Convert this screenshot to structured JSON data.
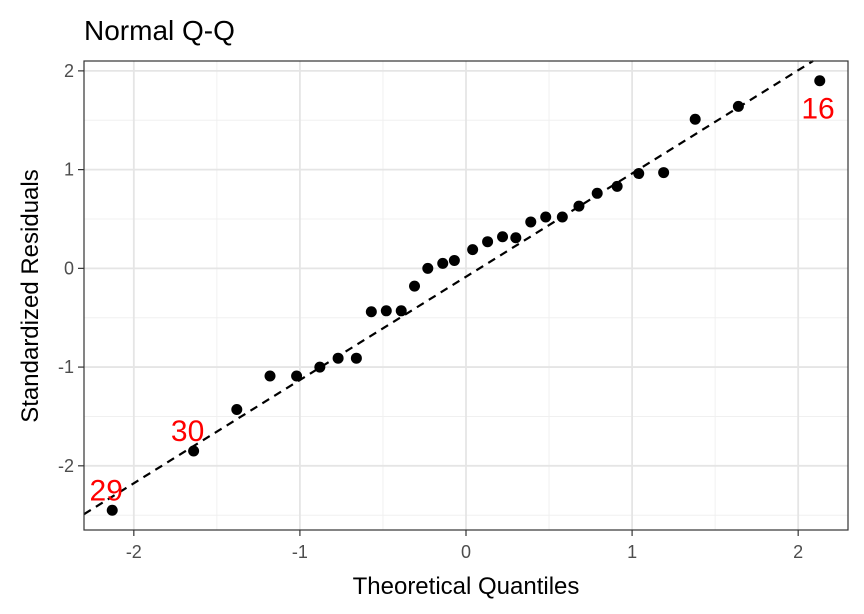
{
  "chart_data": {
    "type": "scatter",
    "title": "Normal Q-Q",
    "xlabel": "Theoretical Quantiles",
    "ylabel": "Standardized Residuals",
    "xlim": [
      -2.3,
      2.3
    ],
    "ylim": [
      -2.65,
      2.1
    ],
    "x_ticks": [
      -2,
      -1,
      0,
      1,
      2
    ],
    "x_tick_labels": [
      "-2",
      "-1",
      "0",
      "1",
      "2"
    ],
    "y_ticks": [
      -2,
      -1,
      0,
      1,
      2
    ],
    "y_tick_labels": [
      "-2",
      "-1",
      "0",
      "1",
      "2"
    ],
    "grid": true,
    "reference_line": {
      "style": "dashed",
      "color": "#000000",
      "points": [
        [
          -2.3,
          -2.49
        ],
        [
          2.3,
          2.32
        ]
      ]
    },
    "point_color": "#000000",
    "label_color": "#ff0000",
    "points": [
      [
        -2.13,
        -2.45
      ],
      [
        -1.64,
        -1.85
      ],
      [
        -1.38,
        -1.43
      ],
      [
        -1.18,
        -1.09
      ],
      [
        -1.02,
        -1.09
      ],
      [
        -0.88,
        -1.0
      ],
      [
        -0.77,
        -0.91
      ],
      [
        -0.66,
        -0.91
      ],
      [
        -0.57,
        -0.44
      ],
      [
        -0.48,
        -0.43
      ],
      [
        -0.39,
        -0.43
      ],
      [
        -0.31,
        -0.18
      ],
      [
        -0.23,
        0.0
      ],
      [
        -0.14,
        0.05
      ],
      [
        -0.07,
        0.08
      ],
      [
        0.04,
        0.19
      ],
      [
        0.13,
        0.27
      ],
      [
        0.22,
        0.32
      ],
      [
        0.3,
        0.31
      ],
      [
        0.39,
        0.47
      ],
      [
        0.48,
        0.52
      ],
      [
        0.58,
        0.52
      ],
      [
        0.68,
        0.63
      ],
      [
        0.79,
        0.76
      ],
      [
        0.91,
        0.83
      ],
      [
        1.04,
        0.96
      ],
      [
        1.19,
        0.97
      ],
      [
        1.38,
        1.51
      ],
      [
        1.64,
        1.64
      ],
      [
        2.13,
        1.9
      ]
    ],
    "point_labels": [
      {
        "text": "29",
        "x": -2.13,
        "y": -2.45
      },
      {
        "text": "30",
        "x": -1.64,
        "y": -1.85
      },
      {
        "text": "16",
        "x": 2.13,
        "y": 1.9
      }
    ]
  }
}
